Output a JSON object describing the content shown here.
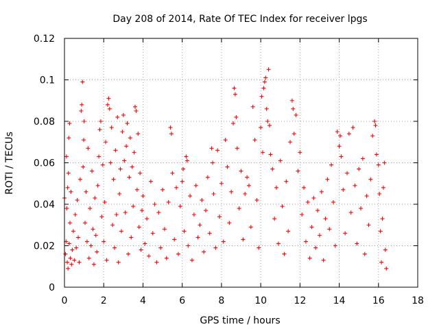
{
  "chart_data": {
    "type": "scatter",
    "title": "Day 208 of 2014, Rate Of TEC Index for receiver lpgs",
    "xlabel": "GPS time / hours",
    "ylabel": "ROTI / TECUs",
    "xlim": [
      0,
      18
    ],
    "ylim": [
      0,
      0.12
    ],
    "x_ticks": [
      0,
      2,
      4,
      6,
      8,
      10,
      12,
      14,
      16,
      18
    ],
    "y_ticks": [
      0,
      0.02,
      0.04,
      0.06,
      0.08,
      0.1,
      0.12
    ],
    "x_tick_labels": [
      "0",
      "2",
      "4",
      "6",
      "8",
      "10",
      "12",
      "14",
      "16",
      "18"
    ],
    "y_tick_labels": [
      "0",
      "0.02",
      "0.04",
      "0.06",
      "0.08",
      "0.1",
      "0.12"
    ],
    "grid": true,
    "marker": "plus",
    "color": "#ff0000",
    "series": [
      {
        "name": "ROTI",
        "points": [
          [
            0.0,
            0.043
          ],
          [
            0.05,
            0.016
          ],
          [
            0.08,
            0.022
          ],
          [
            0.1,
            0.063
          ],
          [
            0.12,
            0.038
          ],
          [
            0.14,
            0.012
          ],
          [
            0.16,
            0.048
          ],
          [
            0.18,
            0.009
          ],
          [
            0.2,
            0.055
          ],
          [
            0.22,
            0.072
          ],
          [
            0.24,
            0.021
          ],
          [
            0.26,
            0.079
          ],
          [
            0.28,
            0.031
          ],
          [
            0.3,
            0.014
          ],
          [
            0.33,
            0.046
          ],
          [
            0.36,
            0.011
          ],
          [
            0.4,
            0.018
          ],
          [
            0.45,
            0.027
          ],
          [
            0.5,
            0.013
          ],
          [
            0.55,
            0.035
          ],
          [
            0.6,
            0.019
          ],
          [
            0.65,
            0.042
          ],
          [
            0.7,
            0.024
          ],
          [
            0.75,
            0.012
          ],
          [
            0.8,
            0.052
          ],
          [
            0.85,
            0.085
          ],
          [
            0.88,
            0.088
          ],
          [
            0.92,
            0.099
          ],
          [
            0.95,
            0.058
          ],
          [
            0.98,
            0.071
          ],
          [
            1.0,
            0.08
          ],
          [
            1.05,
            0.031
          ],
          [
            1.1,
            0.046
          ],
          [
            1.15,
            0.022
          ],
          [
            1.2,
            0.067
          ],
          [
            1.25,
            0.014
          ],
          [
            1.3,
            0.038
          ],
          [
            1.35,
            0.02
          ],
          [
            1.4,
            0.056
          ],
          [
            1.45,
            0.028
          ],
          [
            1.5,
            0.011
          ],
          [
            1.55,
            0.043
          ],
          [
            1.6,
            0.025
          ],
          [
            1.65,
            0.017
          ],
          [
            1.7,
            0.049
          ],
          [
            1.75,
            0.063
          ],
          [
            1.8,
            0.076
          ],
          [
            1.85,
            0.08
          ],
          [
            1.9,
            0.034
          ],
          [
            1.95,
            0.059
          ],
          [
            2.0,
            0.022
          ],
          [
            2.05,
            0.041
          ],
          [
            2.1,
            0.07
          ],
          [
            2.15,
            0.013
          ],
          [
            2.2,
            0.088
          ],
          [
            2.25,
            0.091
          ],
          [
            2.3,
            0.086
          ],
          [
            2.35,
            0.06
          ],
          [
            2.4,
            0.077
          ],
          [
            2.45,
            0.03
          ],
          [
            2.5,
            0.052
          ],
          [
            2.55,
            0.019
          ],
          [
            2.6,
            0.066
          ],
          [
            2.65,
            0.035
          ],
          [
            2.7,
            0.082
          ],
          [
            2.75,
            0.012
          ],
          [
            2.8,
            0.045
          ],
          [
            2.85,
            0.057
          ],
          [
            2.9,
            0.027
          ],
          [
            2.95,
            0.075
          ],
          [
            3.0,
            0.083
          ],
          [
            3.05,
            0.061
          ],
          [
            3.1,
            0.036
          ],
          [
            3.15,
            0.068
          ],
          [
            3.2,
            0.079
          ],
          [
            3.25,
            0.016
          ],
          [
            3.3,
            0.053
          ],
          [
            3.35,
            0.072
          ],
          [
            3.4,
            0.024
          ],
          [
            3.45,
            0.058
          ],
          [
            3.5,
            0.039
          ],
          [
            3.55,
            0.065
          ],
          [
            3.6,
            0.087
          ],
          [
            3.65,
            0.085
          ],
          [
            3.7,
            0.047
          ],
          [
            3.75,
            0.074
          ],
          [
            3.8,
            0.029
          ],
          [
            3.85,
            0.055
          ],
          [
            3.9,
            0.018
          ],
          [
            3.95,
            0.037
          ],
          [
            4.0,
            0.044
          ],
          [
            4.1,
            0.021
          ],
          [
            4.2,
            0.033
          ],
          [
            4.3,
            0.015
          ],
          [
            4.4,
            0.051
          ],
          [
            4.5,
            0.026
          ],
          [
            4.6,
            0.04
          ],
          [
            4.7,
            0.012
          ],
          [
            4.8,
            0.036
          ],
          [
            4.9,
            0.019
          ],
          [
            5.0,
            0.047
          ],
          [
            5.1,
            0.028
          ],
          [
            5.2,
            0.014
          ],
          [
            5.3,
            0.041
          ],
          [
            5.4,
            0.077
          ],
          [
            5.45,
            0.074
          ],
          [
            5.5,
            0.055
          ],
          [
            5.6,
            0.023
          ],
          [
            5.7,
            0.048
          ],
          [
            5.8,
            0.016
          ],
          [
            5.9,
            0.039
          ],
          [
            6.0,
            0.051
          ],
          [
            6.05,
            0.057
          ],
          [
            6.1,
            0.027
          ],
          [
            6.2,
            0.063
          ],
          [
            6.25,
            0.061
          ],
          [
            6.3,
            0.02
          ],
          [
            6.4,
            0.044
          ],
          [
            6.5,
            0.013
          ],
          [
            6.6,
            0.035
          ],
          [
            6.7,
            0.049
          ],
          [
            6.8,
            0.024
          ],
          [
            6.9,
            0.03
          ],
          [
            7.0,
            0.042
          ],
          [
            7.1,
            0.017
          ],
          [
            7.2,
            0.037
          ],
          [
            7.3,
            0.053
          ],
          [
            7.4,
            0.026
          ],
          [
            7.5,
            0.067
          ],
          [
            7.55,
            0.06
          ],
          [
            7.6,
            0.045
          ],
          [
            7.7,
            0.019
          ],
          [
            7.8,
            0.066
          ],
          [
            7.9,
            0.034
          ],
          [
            8.0,
            0.05
          ],
          [
            8.1,
            0.022
          ],
          [
            8.2,
            0.071
          ],
          [
            8.3,
            0.058
          ],
          [
            8.4,
            0.031
          ],
          [
            8.5,
            0.046
          ],
          [
            8.6,
            0.079
          ],
          [
            8.65,
            0.096
          ],
          [
            8.7,
            0.093
          ],
          [
            8.75,
            0.082
          ],
          [
            8.8,
            0.067
          ],
          [
            8.9,
            0.038
          ],
          [
            9.0,
            0.056
          ],
          [
            9.1,
            0.023
          ],
          [
            9.2,
            0.045
          ],
          [
            9.3,
            0.053
          ],
          [
            9.4,
            0.049
          ],
          [
            9.5,
            0.029
          ],
          [
            9.6,
            0.087
          ],
          [
            9.7,
            0.071
          ],
          [
            9.8,
            0.042
          ],
          [
            9.9,
            0.019
          ],
          [
            10.0,
            0.077
          ],
          [
            10.05,
            0.092
          ],
          [
            10.1,
            0.065
          ],
          [
            10.15,
            0.096
          ],
          [
            10.2,
            0.099
          ],
          [
            10.25,
            0.101
          ],
          [
            10.3,
            0.086
          ],
          [
            10.35,
            0.08
          ],
          [
            10.4,
            0.105
          ],
          [
            10.45,
            0.078
          ],
          [
            10.5,
            0.064
          ],
          [
            10.6,
            0.057
          ],
          [
            10.7,
            0.033
          ],
          [
            10.8,
            0.048
          ],
          [
            10.9,
            0.021
          ],
          [
            11.0,
            0.061
          ],
          [
            11.1,
            0.039
          ],
          [
            11.2,
            0.016
          ],
          [
            11.3,
            0.051
          ],
          [
            11.4,
            0.027
          ],
          [
            11.5,
            0.07
          ],
          [
            11.6,
            0.09
          ],
          [
            11.65,
            0.086
          ],
          [
            11.7,
            0.074
          ],
          [
            11.8,
            0.083
          ],
          [
            11.9,
            0.056
          ],
          [
            12.0,
            0.065
          ],
          [
            12.1,
            0.035
          ],
          [
            12.2,
            0.048
          ],
          [
            12.3,
            0.022
          ],
          [
            12.4,
            0.041
          ],
          [
            12.5,
            0.014
          ],
          [
            12.6,
            0.029
          ],
          [
            12.7,
            0.043
          ],
          [
            12.8,
            0.019
          ],
          [
            12.9,
            0.037
          ],
          [
            13.0,
            0.025
          ],
          [
            13.1,
            0.046
          ],
          [
            13.2,
            0.013
          ],
          [
            13.3,
            0.033
          ],
          [
            13.4,
            0.052
          ],
          [
            13.5,
            0.028
          ],
          [
            13.6,
            0.059
          ],
          [
            13.7,
            0.041
          ],
          [
            13.8,
            0.02
          ],
          [
            13.9,
            0.075
          ],
          [
            14.0,
            0.068
          ],
          [
            14.05,
            0.073
          ],
          [
            14.1,
            0.063
          ],
          [
            14.2,
            0.047
          ],
          [
            14.3,
            0.026
          ],
          [
            14.4,
            0.055
          ],
          [
            14.5,
            0.074
          ],
          [
            14.6,
            0.036
          ],
          [
            14.7,
            0.077
          ],
          [
            14.8,
            0.049
          ],
          [
            14.9,
            0.021
          ],
          [
            15.0,
            0.057
          ],
          [
            15.1,
            0.038
          ],
          [
            15.2,
            0.062
          ],
          [
            15.3,
            0.016
          ],
          [
            15.4,
            0.044
          ],
          [
            15.5,
            0.03
          ],
          [
            15.6,
            0.052
          ],
          [
            15.7,
            0.073
          ],
          [
            15.8,
            0.08
          ],
          [
            15.85,
            0.078
          ],
          [
            15.9,
            0.064
          ],
          [
            16.0,
            0.059
          ],
          [
            16.05,
            0.045
          ],
          [
            16.1,
            0.027
          ],
          [
            16.15,
            0.012
          ],
          [
            16.2,
            0.033
          ],
          [
            16.25,
            0.048
          ],
          [
            16.3,
            0.06
          ],
          [
            16.35,
            0.018
          ],
          [
            16.4,
            0.009
          ]
        ]
      }
    ]
  }
}
